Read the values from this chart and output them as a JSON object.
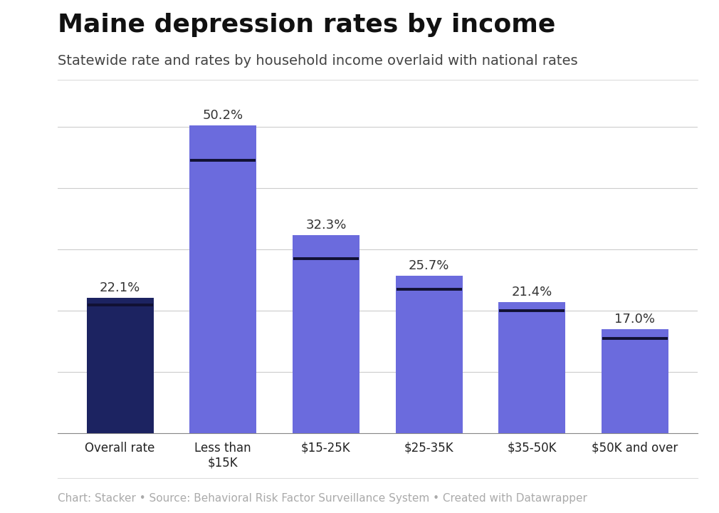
{
  "title": "Maine depression rates by income",
  "subtitle": "Statewide rate and rates by household income overlaid with national rates",
  "footer": "Chart: Stacker • Source: Behavioral Risk Factor Surveillance System • Created with Datawrapper",
  "categories": [
    "Overall rate",
    "Less than\n$15K",
    "$15-25K",
    "$25-35K",
    "$35-50K",
    "$50K and over"
  ],
  "values": [
    22.1,
    50.2,
    32.3,
    25.7,
    21.4,
    17.0
  ],
  "national_rates": [
    21.0,
    44.5,
    28.5,
    23.5,
    20.0,
    15.5
  ],
  "bar_colors": [
    "#1c2361",
    "#6b6bdd",
    "#6b6bdd",
    "#6b6bdd",
    "#6b6bdd",
    "#6b6bdd"
  ],
  "national_line_color": "#111133",
  "ylim": [
    0,
    56
  ],
  "yticks": [
    0,
    10,
    20,
    30,
    40,
    50
  ],
  "grid_color": "#cccccc",
  "background_color": "#ffffff",
  "title_fontsize": 26,
  "subtitle_fontsize": 14,
  "label_fontsize": 13,
  "tick_fontsize": 12,
  "footer_fontsize": 11,
  "footer_color": "#aaaaaa",
  "value_label_color": "#333333"
}
